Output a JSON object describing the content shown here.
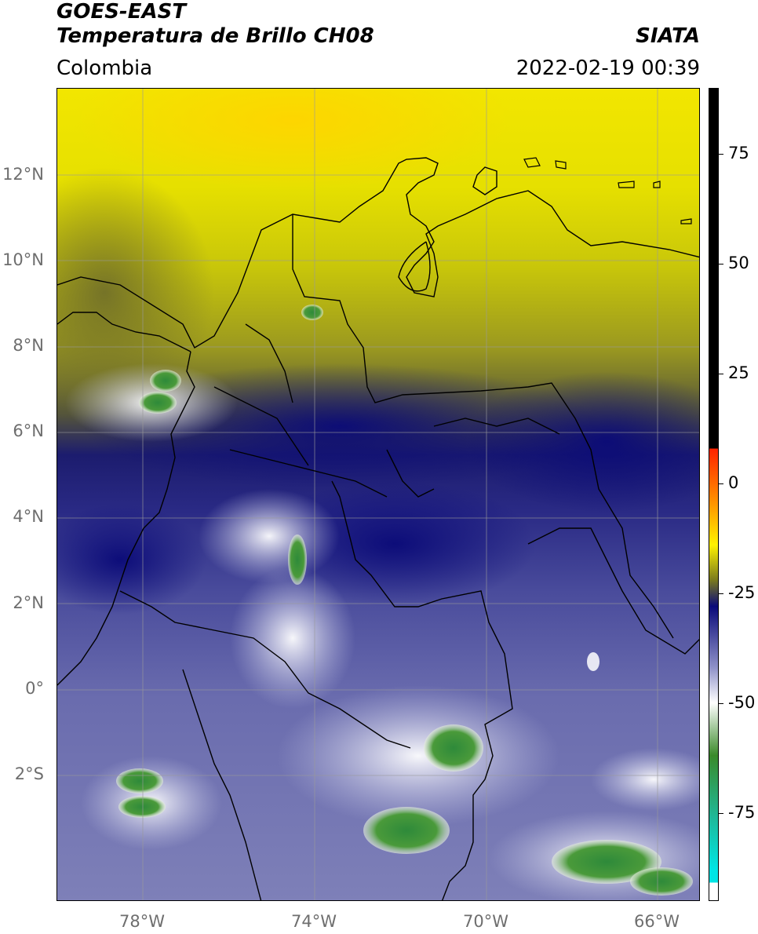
{
  "header": {
    "satellite": "GOES-EAST",
    "product": "Temperatura de Brillo CH08",
    "region": "Colombia",
    "agency": "SIATA",
    "datetime": "2022-02-19 00:39"
  },
  "map": {
    "lat_labels": [
      "12°N",
      "10°N",
      "8°N",
      "6°N",
      "4°N",
      "2°N",
      "0°",
      "2°S"
    ],
    "lon_labels": [
      "78°W",
      "74°W",
      "70°W",
      "66°W"
    ],
    "extent": {
      "lon_min": -80,
      "lon_max": -65,
      "lat_min": -5.2,
      "lat_max": 14.1
    }
  },
  "colorbar": {
    "labels": [
      "75",
      "50",
      "25",
      "0",
      "-25",
      "-50",
      "-75"
    ],
    "range": [
      -95,
      90
    ],
    "colors": {
      "black": "#000000",
      "red": "#ff2200",
      "orange": "#ff9900",
      "yellow": "#fff200",
      "olive": "#7a7a1e",
      "dark_blue": "#0a0a7a",
      "lavender": "#8f92c8",
      "white": "#ffffff",
      "green": "#3a8a2a",
      "teal": "#1fb898",
      "cyan": "#00e5e5"
    }
  }
}
